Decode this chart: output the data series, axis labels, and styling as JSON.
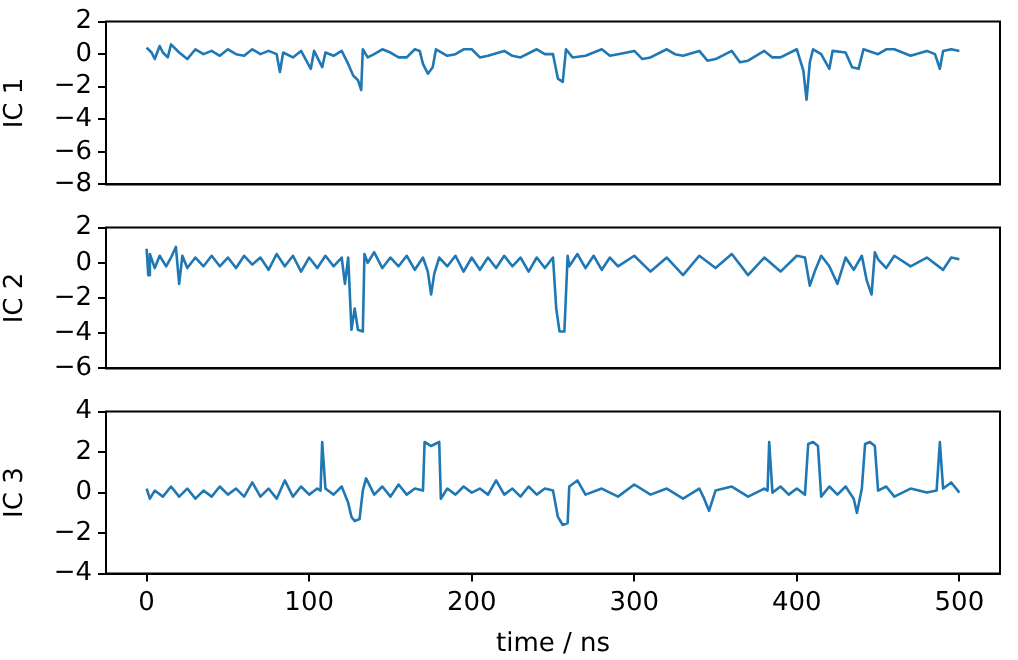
{
  "chart_data": [
    {
      "type": "line",
      "ylabel": "IC 1",
      "xlim": [
        -25,
        525
      ],
      "xticks": [
        0,
        100,
        200,
        300,
        400,
        500
      ],
      "ylim": [
        -8,
        2
      ],
      "yticks": [
        -8,
        -6,
        -4,
        -2,
        0,
        2
      ],
      "tick_labels": "y",
      "grid": false,
      "marker": "none",
      "series": [
        {
          "color": "#1f77b4",
          "x": [
            0,
            3,
            5,
            8,
            10,
            13,
            15,
            20,
            25,
            30,
            35,
            40,
            45,
            50,
            55,
            60,
            65,
            70,
            75,
            80,
            82,
            84,
            90,
            95,
            101,
            103,
            108,
            110,
            115,
            120,
            124,
            127,
            130,
            132,
            133,
            136,
            140,
            145,
            150,
            155,
            160,
            165,
            168,
            170,
            173,
            176,
            178,
            185,
            190,
            195,
            200,
            205,
            210,
            220,
            225,
            230,
            240,
            245,
            250,
            253,
            256,
            258,
            262,
            270,
            280,
            285,
            290,
            300,
            305,
            310,
            320,
            325,
            330,
            340,
            345,
            350,
            360,
            365,
            370,
            380,
            385,
            390,
            400,
            404,
            406,
            408,
            410,
            415,
            420,
            422,
            430,
            434,
            438,
            441,
            450,
            455,
            460,
            470,
            480,
            485,
            488,
            490,
            495,
            500
          ],
          "values": [
            0.4,
            0.1,
            -0.3,
            0.5,
            0.1,
            -0.2,
            0.6,
            0.1,
            -0.3,
            0.3,
            0.0,
            0.2,
            -0.1,
            0.3,
            0.0,
            -0.1,
            0.3,
            0.0,
            0.2,
            0.0,
            -1.1,
            0.1,
            -0.2,
            0.2,
            -0.9,
            0.2,
            -0.8,
            0.1,
            -0.1,
            0.2,
            -0.6,
            -1.3,
            -1.6,
            -2.2,
            0.3,
            -0.2,
            0.0,
            0.3,
            0.1,
            -0.2,
            -0.2,
            0.3,
            0.2,
            -0.6,
            -1.2,
            -0.8,
            0.3,
            -0.1,
            0.0,
            0.3,
            0.3,
            -0.2,
            -0.1,
            0.2,
            -0.1,
            -0.2,
            0.3,
            0.0,
            0.0,
            -1.5,
            -1.7,
            0.3,
            -0.2,
            -0.1,
            0.3,
            -0.1,
            0.0,
            0.2,
            -0.3,
            -0.2,
            0.3,
            0.0,
            -0.1,
            0.2,
            -0.4,
            -0.3,
            0.2,
            -0.5,
            -0.4,
            0.2,
            -0.2,
            -0.2,
            0.3,
            -1.0,
            -2.8,
            -0.5,
            0.3,
            0.0,
            -0.9,
            0.2,
            0.1,
            -0.8,
            -0.9,
            0.3,
            0.0,
            0.3,
            0.3,
            -0.1,
            0.2,
            0.0,
            -0.9,
            0.2,
            0.3,
            0.2
          ]
        }
      ]
    },
    {
      "type": "line",
      "ylabel": "IC 2",
      "xlim": [
        -25,
        525
      ],
      "xticks": [
        0,
        100,
        200,
        300,
        400,
        500
      ],
      "ylim": [
        -6,
        2
      ],
      "yticks": [
        -6,
        -4,
        -2,
        0,
        2
      ],
      "tick_labels": "y",
      "grid": false,
      "marker": "none",
      "series": [
        {
          "color": "#1f77b4",
          "x": [
            0,
            1,
            2,
            5,
            8,
            12,
            15,
            18,
            20,
            22,
            25,
            30,
            35,
            40,
            45,
            50,
            55,
            60,
            65,
            70,
            75,
            80,
            85,
            90,
            95,
            100,
            105,
            110,
            115,
            120,
            122,
            124,
            126,
            128,
            130,
            133,
            134,
            136,
            140,
            145,
            150,
            155,
            160,
            165,
            170,
            173,
            175,
            177,
            180,
            185,
            190,
            195,
            200,
            205,
            210,
            215,
            220,
            225,
            230,
            235,
            240,
            245,
            250,
            252,
            254,
            257,
            259,
            260,
            265,
            270,
            275,
            280,
            285,
            290,
            300,
            310,
            320,
            330,
            340,
            350,
            360,
            370,
            380,
            390,
            400,
            405,
            408,
            411,
            415,
            420,
            425,
            430,
            435,
            440,
            443,
            446,
            448,
            450,
            455,
            460,
            470,
            480,
            490,
            495,
            500
          ],
          "values": [
            0.8,
            -0.7,
            0.5,
            -0.3,
            0.4,
            -0.2,
            0.3,
            0.9,
            -1.2,
            0.4,
            -0.3,
            0.3,
            -0.2,
            0.4,
            -0.2,
            0.3,
            -0.3,
            0.4,
            -0.1,
            0.3,
            -0.4,
            0.5,
            -0.2,
            0.4,
            -0.5,
            0.3,
            -0.3,
            0.4,
            -0.2,
            0.3,
            -1.2,
            0.3,
            -3.8,
            -2.6,
            -3.8,
            -3.9,
            0.5,
            0.0,
            0.6,
            -0.3,
            0.3,
            -0.2,
            0.4,
            -0.4,
            0.3,
            -0.5,
            -1.8,
            -0.6,
            0.3,
            -0.2,
            0.4,
            -0.5,
            0.3,
            -0.4,
            0.3,
            -0.3,
            0.4,
            -0.2,
            0.3,
            -0.5,
            0.3,
            -0.3,
            0.3,
            -2.6,
            -3.9,
            -3.9,
            0.4,
            -0.2,
            0.5,
            -0.3,
            0.4,
            -0.4,
            0.3,
            -0.2,
            0.4,
            -0.5,
            0.3,
            -0.7,
            0.4,
            -0.3,
            0.5,
            -0.7,
            0.3,
            -0.5,
            0.4,
            0.3,
            -1.3,
            -0.5,
            0.4,
            -0.2,
            -1.2,
            0.3,
            -0.4,
            0.4,
            -1.0,
            -1.8,
            0.6,
            0.2,
            -0.3,
            0.4,
            -0.2,
            0.3,
            -0.4,
            0.3,
            0.2
          ]
        }
      ]
    },
    {
      "type": "line",
      "ylabel": "IC 3",
      "xlabel": "time / ns",
      "xlim": [
        -25,
        525
      ],
      "xticks": [
        0,
        100,
        200,
        300,
        400,
        500
      ],
      "ylim": [
        -4,
        4
      ],
      "yticks": [
        -4,
        -2,
        0,
        2,
        4
      ],
      "grid": false,
      "marker": "none",
      "series": [
        {
          "color": "#1f77b4",
          "x": [
            0,
            2,
            5,
            10,
            15,
            20,
            25,
            30,
            35,
            40,
            45,
            50,
            55,
            60,
            65,
            70,
            75,
            80,
            85,
            90,
            95,
            100,
            105,
            107,
            108,
            110,
            115,
            120,
            124,
            126,
            128,
            131,
            133,
            135,
            140,
            145,
            150,
            155,
            160,
            165,
            170,
            171,
            175,
            180,
            181,
            185,
            190,
            195,
            200,
            205,
            210,
            215,
            220,
            225,
            230,
            235,
            240,
            245,
            250,
            253,
            256,
            259,
            260,
            265,
            270,
            280,
            290,
            300,
            310,
            320,
            330,
            340,
            343,
            346,
            350,
            360,
            370,
            380,
            382,
            383,
            385,
            390,
            395,
            400,
            405,
            407,
            410,
            413,
            415,
            420,
            425,
            430,
            435,
            437,
            440,
            442,
            445,
            448,
            450,
            455,
            460,
            470,
            480,
            486,
            488,
            490,
            495,
            500
          ],
          "values": [
            0.2,
            -0.3,
            0.1,
            -0.2,
            0.3,
            -0.2,
            0.2,
            -0.3,
            0.1,
            -0.2,
            0.3,
            -0.1,
            0.2,
            -0.2,
            0.5,
            -0.2,
            0.2,
            -0.3,
            0.6,
            -0.2,
            0.3,
            -0.1,
            0.2,
            0.1,
            2.5,
            0.2,
            -0.1,
            0.3,
            -0.5,
            -1.2,
            -1.4,
            -1.3,
            0.1,
            0.7,
            -0.1,
            0.3,
            -0.2,
            0.4,
            -0.1,
            0.2,
            0.1,
            2.5,
            2.3,
            2.5,
            -0.3,
            0.2,
            -0.1,
            0.3,
            0.0,
            0.2,
            -0.1,
            0.6,
            -0.1,
            0.2,
            -0.2,
            0.3,
            -0.1,
            0.2,
            0.1,
            -1.2,
            -1.6,
            -1.5,
            0.3,
            0.6,
            -0.1,
            0.2,
            -0.2,
            0.4,
            -0.1,
            0.2,
            -0.3,
            0.2,
            -0.3,
            -0.9,
            0.1,
            0.3,
            -0.2,
            0.2,
            0.1,
            2.5,
            0.0,
            0.3,
            -0.1,
            0.2,
            -0.1,
            2.4,
            2.5,
            2.3,
            -0.2,
            0.3,
            -0.1,
            0.3,
            -0.3,
            -1.0,
            0.2,
            2.4,
            2.5,
            2.3,
            0.1,
            0.3,
            -0.2,
            0.2,
            0.0,
            0.1,
            2.5,
            0.2,
            0.5,
            0.0
          ]
        }
      ]
    }
  ]
}
